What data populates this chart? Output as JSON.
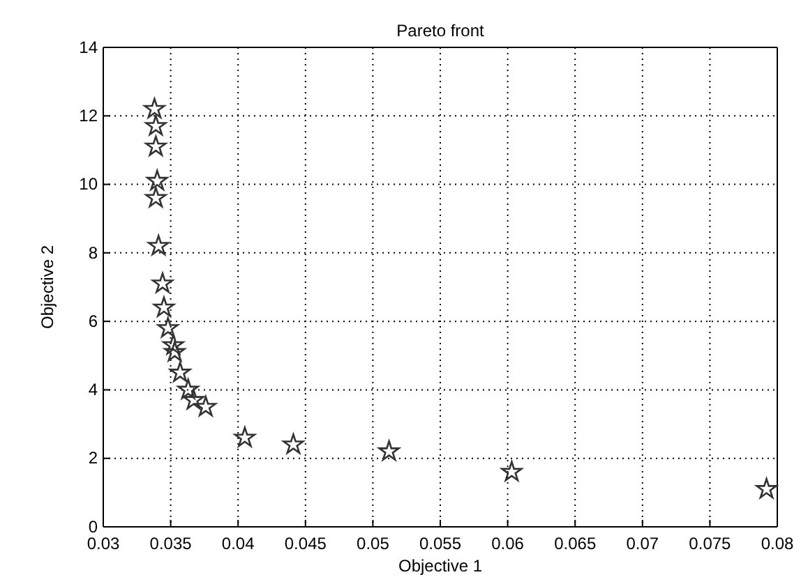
{
  "chart_data": {
    "type": "scatter",
    "title": "Pareto front",
    "xlabel": "Objective 1",
    "ylabel": "Objective 2",
    "x": [
      0.0338,
      0.0339,
      0.0339,
      0.034,
      0.0339,
      0.0341,
      0.0344,
      0.0345,
      0.0348,
      0.0352,
      0.0353,
      0.0357,
      0.0363,
      0.0367,
      0.0376,
      0.0405,
      0.0441,
      0.0512,
      0.0603,
      0.0792
    ],
    "series": [
      {
        "color": "#333333",
        "values": [
          12.2,
          11.7,
          11.1,
          10.1,
          9.6,
          8.2,
          7.1,
          6.4,
          5.8,
          5.3,
          5.1,
          4.5,
          4.0,
          3.7,
          3.5,
          2.6,
          2.4,
          2.2,
          1.6,
          1.1
        ]
      }
    ],
    "xlim": [
      0.03,
      0.08
    ],
    "xticks": [
      0.03,
      0.035,
      0.04,
      0.045,
      0.05,
      0.055,
      0.06,
      0.065,
      0.07,
      0.075,
      0.08
    ],
    "ylim": [
      0,
      14
    ],
    "yticks": [
      0,
      2,
      4,
      6,
      8,
      10,
      12,
      14
    ],
    "grid": true,
    "marker": "star"
  }
}
